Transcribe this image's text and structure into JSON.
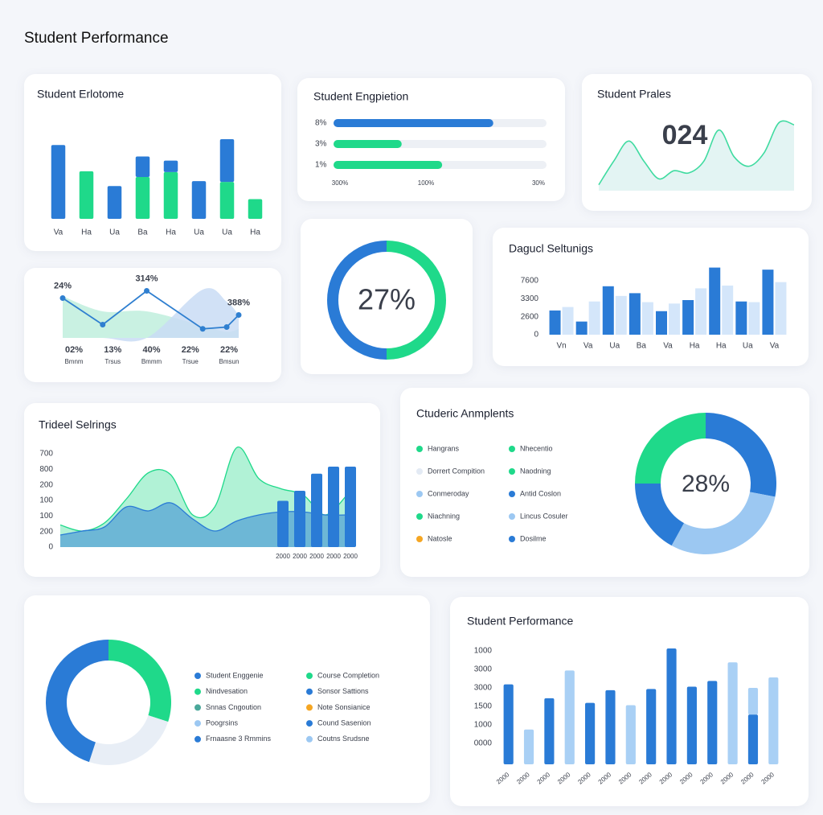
{
  "title": "Student Performance",
  "chart_data": [
    {
      "type": "bar",
      "title": "Student Erlotome",
      "categories": [
        "Va",
        "Ha",
        "Ua",
        "Ba",
        "Ha",
        "Ua",
        "Ua",
        "Ha"
      ],
      "series": [
        {
          "color": "#1fd98a",
          "values": [
            0,
            58,
            0,
            51,
            57,
            0,
            45,
            24
          ]
        },
        {
          "color": "#2a7bd6",
          "values": [
            90,
            0,
            40,
            25,
            14,
            46,
            52,
            0
          ]
        }
      ],
      "ylim": [
        0,
        100
      ]
    },
    {
      "type": "hbar",
      "title": "Student Engpietion",
      "categories": [
        "8%",
        "3%",
        "1%"
      ],
      "values": [
        75,
        32,
        51
      ],
      "colors": [
        "#2a7bd6",
        "#1fd98a",
        "#1fd98a"
      ],
      "xlim": [
        0,
        100
      ],
      "axis_labels": [
        "300%",
        "100%",
        "30%"
      ]
    },
    {
      "type": "area",
      "title": "Student Prales",
      "annotation": "024",
      "color": "#3fdba0",
      "values": [
        8,
        40,
        67,
        40,
        16,
        27,
        24,
        40,
        82,
        46,
        33,
        51,
        92,
        89
      ],
      "ylim": [
        0,
        100
      ]
    },
    {
      "type": "line",
      "annotations": [
        "24%",
        "314%",
        "388%"
      ],
      "x": [
        0,
        10,
        21,
        35,
        41,
        44
      ],
      "xlim": [
        0,
        44
      ],
      "ylim": [
        0,
        100
      ],
      "series": [
        {
          "color": "#2f7fd0",
          "values": [
            66,
            22,
            78,
            15,
            18,
            38
          ]
        }
      ],
      "areas": [
        {
          "color": "#bfeedd",
          "values": [
            69,
            44,
            44,
            20,
            10,
            15
          ]
        },
        {
          "color": "#c9dcf5",
          "values": [
            0,
            0,
            0,
            80,
            60,
            38
          ]
        }
      ],
      "stats": [
        {
          "value": "02%",
          "label": "Bmnm"
        },
        {
          "value": "13%",
          "label": "Trsus"
        },
        {
          "value": "40%",
          "label": "Bmmm"
        },
        {
          "value": "22%",
          "label": "Trsue"
        },
        {
          "value": "22%",
          "label": "Bmsun"
        }
      ]
    },
    {
      "type": "donut",
      "center_label": "27%",
      "values": [
        50,
        50
      ],
      "colors": [
        "#1fd98a",
        "#2a7bd6"
      ]
    },
    {
      "type": "grouped-bar",
      "title": "Dagucl Seltunigs",
      "categories": [
        "Vn",
        "Va",
        "Ua",
        "Ba",
        "Va",
        "Ha",
        "Ha",
        "Ua",
        "Va"
      ],
      "series": [
        {
          "color": "#2a7bd6",
          "values": [
            35,
            19,
            70,
            60,
            34,
            50,
            97,
            48,
            94
          ]
        },
        {
          "color": "#d4e6fa",
          "values": [
            40,
            48,
            56,
            47,
            45,
            67,
            71,
            47,
            76
          ]
        }
      ],
      "ylim": [
        0,
        100
      ],
      "y_axis_labels": [
        "7600",
        "3300",
        "2600",
        "0"
      ]
    },
    {
      "type": "combo",
      "title": "Trideel Selrings",
      "ylim": [
        0,
        100
      ],
      "y_axis_labels": [
        "700",
        "800",
        "200",
        "100",
        "100",
        "200",
        "0"
      ],
      "areas": [
        {
          "color": "#1fd98a",
          "values": [
            22,
            16,
            24,
            48,
            74,
            72,
            32,
            40,
            99,
            68,
            58,
            52,
            32,
            52
          ]
        },
        {
          "color": "#2a7bd6",
          "values": [
            12,
            16,
            20,
            40,
            36,
            44,
            28,
            16,
            26,
            32,
            35,
            35,
            32,
            32
          ]
        }
      ],
      "bars": {
        "color": "#2a7bd6",
        "categories": [
          "2000",
          "2000",
          "2000",
          "2000",
          "2000"
        ],
        "values": [
          46,
          56,
          73,
          80,
          80
        ]
      }
    },
    {
      "type": "donut",
      "title": "Ctuderic Anmplents",
      "center_label": "28%",
      "values": [
        28,
        30,
        17,
        25
      ],
      "colors": [
        "#2a7bd6",
        "#9cc8f2",
        "#2a7bd6",
        "#1fd98a"
      ],
      "legend": [
        {
          "name": "Hangrans",
          "color": "#1fd98a"
        },
        {
          "name": "Dorrert Compition",
          "color": "#e3eaf4"
        },
        {
          "name": "Conmeroday",
          "color": "#9cc8f2"
        },
        {
          "name": "Niachning",
          "color": "#1fd98a"
        },
        {
          "name": "Natosle",
          "color": "#f5a623"
        },
        {
          "name": "Nhecentio",
          "color": "#1fd98a"
        },
        {
          "name": "Naodning",
          "color": "#1fd98a"
        },
        {
          "name": "Antid Coslon",
          "color": "#2a7bd6"
        },
        {
          "name": "Lincus Cosuler",
          "color": "#9cc8f2"
        },
        {
          "name": "Dosilme",
          "color": "#2a7bd6"
        }
      ]
    },
    {
      "type": "donut",
      "values": [
        30,
        25,
        45
      ],
      "colors": [
        "#1fd98a",
        "#e8eef6",
        "#2a7bd6"
      ],
      "legend": [
        {
          "name": "Student Enggenie",
          "color": "#2a7bd6"
        },
        {
          "name": "Nindvesation",
          "color": "#1fd98a"
        },
        {
          "name": "Snnas Cngoution",
          "color": "#4aa89a"
        },
        {
          "name": "Poogrsins",
          "color": "#9cc8f2"
        },
        {
          "name": "Frnaasne 3 Rmmins",
          "color": "#2a7bd6"
        },
        {
          "name": "Course Completion",
          "color": "#1fd98a"
        },
        {
          "name": "Sonsor Sattions",
          "color": "#2a7bd6"
        },
        {
          "name": "Note Sonsianice",
          "color": "#f5a623"
        },
        {
          "name": "Cound Sasenion",
          "color": "#2a7bd6"
        },
        {
          "name": "Coutns Srudsne",
          "color": "#9cc8f2"
        }
      ]
    },
    {
      "type": "bar",
      "title": "Student Performance",
      "categories": [
        "2000",
        "2000",
        "2000",
        "2000",
        "2000",
        "2000",
        "2000",
        "2000",
        "2000",
        "2000",
        "2000",
        "2000",
        "2000",
        "2000"
      ],
      "series": [
        {
          "color": "#2a7bd6",
          "values": [
            69,
            0,
            57,
            0,
            53,
            64,
            0,
            65,
            100,
            67,
            72,
            0,
            43,
            0
          ]
        },
        {
          "color": "#a9d0f5",
          "values": [
            0,
            30,
            0,
            81,
            0,
            0,
            51,
            0,
            0,
            0,
            0,
            88,
            23,
            75
          ]
        }
      ],
      "ylim": [
        0,
        100
      ],
      "y_axis_labels": [
        "1000",
        "3000",
        "3000",
        "1500",
        "1000",
        "0000"
      ]
    }
  ]
}
